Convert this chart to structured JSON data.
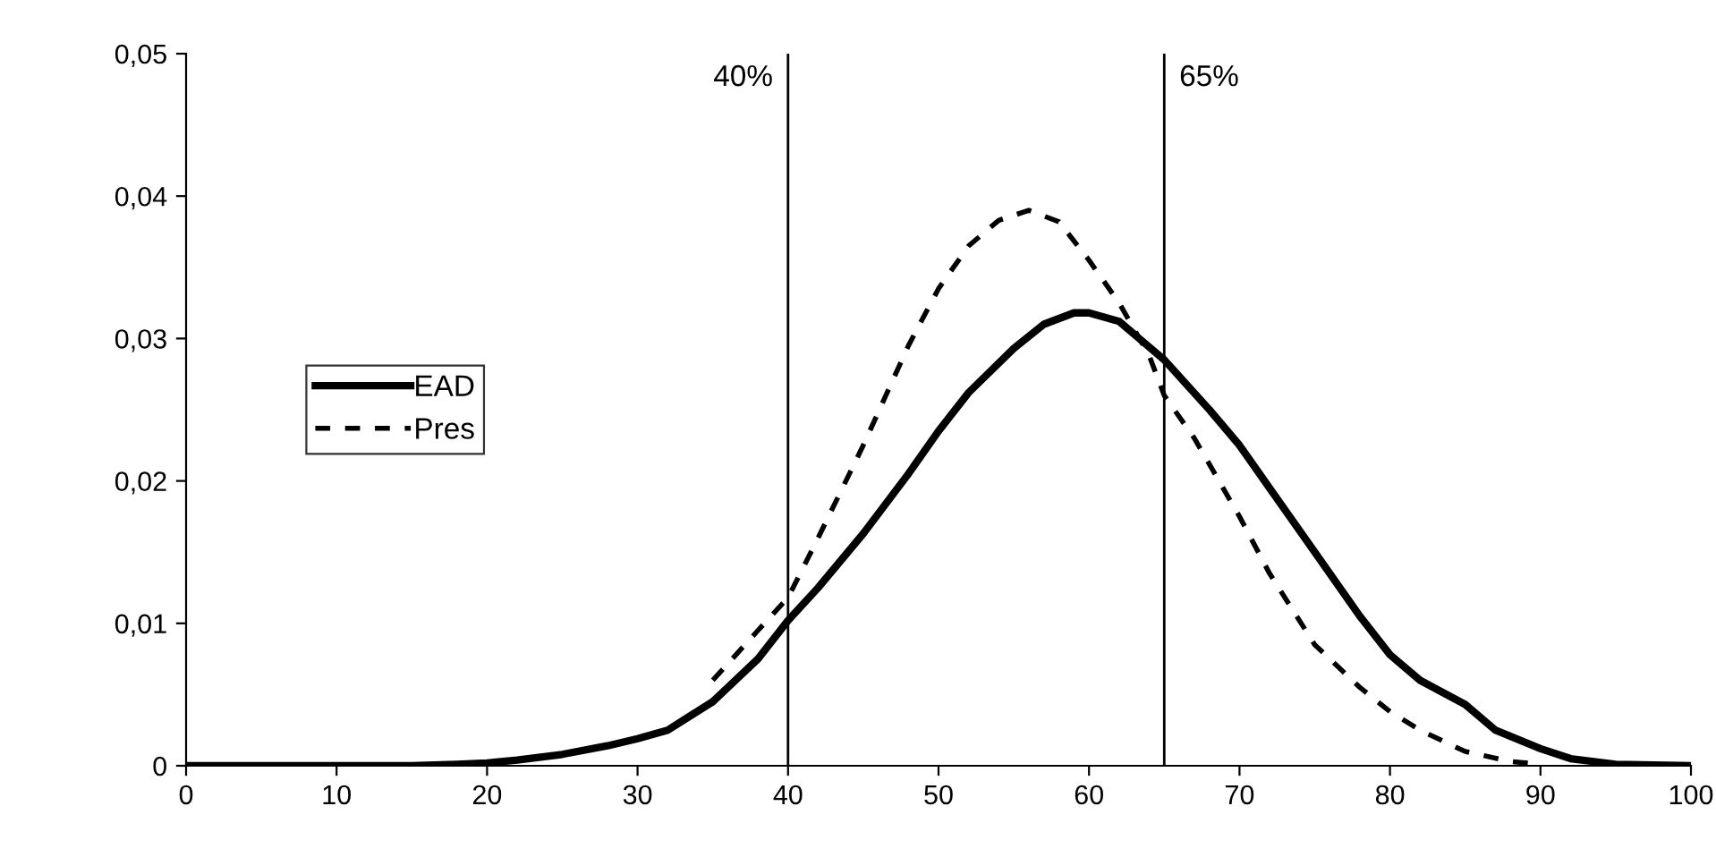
{
  "chart_data": {
    "type": "line",
    "xlim": [
      0,
      100
    ],
    "xticks": [
      0,
      10,
      20,
      30,
      40,
      50,
      60,
      70,
      80,
      90,
      100
    ],
    "ylim": [
      0,
      0.05
    ],
    "yticks": [
      {
        "value": 0,
        "label": "0"
      },
      {
        "value": 0.01,
        "label": "0,01"
      },
      {
        "value": 0.02,
        "label": "0,02"
      },
      {
        "value": 0.03,
        "label": "0,03"
      },
      {
        "value": 0.04,
        "label": "0,04"
      },
      {
        "value": 0.05,
        "label": "0,05"
      }
    ],
    "grid": false,
    "legend": "left",
    "marker": "none",
    "ref_lines": [
      {
        "axis": "x",
        "value": 40,
        "label": "40%",
        "color": "#000000"
      },
      {
        "axis": "x",
        "value": 65,
        "label": "65%",
        "color": "#000000"
      }
    ],
    "series": [
      {
        "name": "EAD",
        "color": "#000000",
        "line_style": "solid",
        "x": [
          0,
          10,
          15,
          18,
          20,
          22,
          25,
          28,
          30,
          32,
          35,
          38,
          40,
          42,
          45,
          48,
          50,
          52,
          55,
          57,
          59,
          60,
          62,
          65,
          68,
          70,
          72,
          75,
          78,
          80,
          82,
          85,
          87,
          90,
          92,
          95,
          100
        ],
        "values": [
          0,
          0,
          0,
          0.0001,
          0.0002,
          0.0004,
          0.0008,
          0.0014,
          0.0019,
          0.0025,
          0.0045,
          0.0075,
          0.0102,
          0.0125,
          0.0163,
          0.0205,
          0.0235,
          0.0262,
          0.0293,
          0.031,
          0.0318,
          0.0318,
          0.0312,
          0.0285,
          0.025,
          0.0225,
          0.0195,
          0.015,
          0.0105,
          0.0078,
          0.006,
          0.0043,
          0.0025,
          0.0012,
          0.0005,
          0.0001,
          0
        ]
      },
      {
        "name": "Pres",
        "color": "#000000",
        "line_style": "dashed",
        "x": [
          35,
          38,
          40,
          42,
          45,
          48,
          50,
          52,
          54,
          56,
          58,
          60,
          62,
          64,
          65,
          67,
          70,
          72,
          75,
          78,
          80,
          82,
          85,
          88,
          90
        ],
        "values": [
          0.006,
          0.0095,
          0.0118,
          0.016,
          0.0225,
          0.0295,
          0.0335,
          0.0365,
          0.0383,
          0.039,
          0.0382,
          0.0355,
          0.0325,
          0.0288,
          0.026,
          0.023,
          0.0175,
          0.0135,
          0.0085,
          0.0055,
          0.0038,
          0.0025,
          0.001,
          0.0003,
          0.0001
        ]
      }
    ]
  }
}
